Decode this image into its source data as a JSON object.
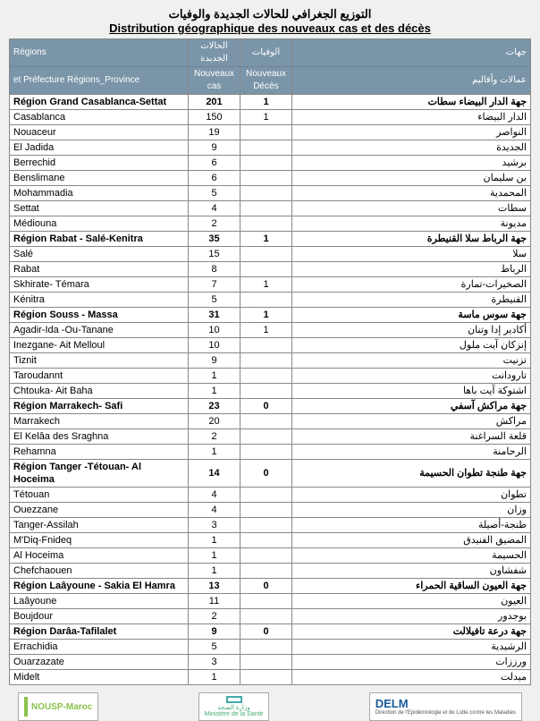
{
  "title_ar": "التوزيع الجغرافي للحالات الجديدة والوفيات",
  "title_fr": "Distribution géographique des nouveaux cas et des décès",
  "headers": {
    "fr1": "Régions",
    "fr2": "et Préfecture Régions_Province",
    "cas_ar": "الحالات الجديدة",
    "cas_fr": "Nouveaux cas",
    "dec_ar": "الوفيات",
    "dec_fr": "Nouveaux Décès",
    "ar1": "جهات",
    "ar2": "عمالات وأقاليم"
  },
  "rows": [
    {
      "region": true,
      "fr": "Région Grand Casablanca-Settat",
      "cas": "201",
      "dec": "1",
      "ar": "جهة الدار البيضاء سطات"
    },
    {
      "fr": "Casablanca",
      "cas": "150",
      "dec": "1",
      "ar": "الدار البيضاء"
    },
    {
      "fr": "Nouaceur",
      "cas": "19",
      "dec": "",
      "ar": "النواصر"
    },
    {
      "fr": "El Jadida",
      "cas": "9",
      "dec": "",
      "ar": "الجديدة"
    },
    {
      "fr": "Berrechid",
      "cas": "6",
      "dec": "",
      "ar": "برشيد"
    },
    {
      "fr": "Benslimane",
      "cas": "6",
      "dec": "",
      "ar": "بن سليمان"
    },
    {
      "fr": "Mohammadia",
      "cas": "5",
      "dec": "",
      "ar": "المحمدية"
    },
    {
      "fr": "Settat",
      "cas": "4",
      "dec": "",
      "ar": "سطات"
    },
    {
      "fr": "Médiouna",
      "cas": "2",
      "dec": "",
      "ar": "مديونة"
    },
    {
      "region": true,
      "fr": "Région Rabat - Salé-Kenitra",
      "cas": "35",
      "dec": "1",
      "ar": "جهة الرباط سلا القنيطرة"
    },
    {
      "fr": "Salé",
      "cas": "15",
      "dec": "",
      "ar": "سلا"
    },
    {
      "fr": "Rabat",
      "cas": "8",
      "dec": "",
      "ar": "الرباط"
    },
    {
      "fr": "Skhirate- Témara",
      "cas": "7",
      "dec": "1",
      "ar": "الصخيرات-تمارة"
    },
    {
      "fr": "Kénitra",
      "cas": "5",
      "dec": "",
      "ar": "القنيطرة"
    },
    {
      "region": true,
      "fr": "Région Souss - Massa",
      "cas": "31",
      "dec": "1",
      "ar": "جهة سوس ماسة"
    },
    {
      "fr": "Agadir-Ida -Ou-Tanane",
      "cas": "10",
      "dec": "1",
      "ar": "أكادير إدا وتنان"
    },
    {
      "fr": "Inezgane- Ait Melloul",
      "cas": "10",
      "dec": "",
      "ar": "إنزكان آيت ملول"
    },
    {
      "fr": "Tiznit",
      "cas": "9",
      "dec": "",
      "ar": "تزنيت"
    },
    {
      "fr": "Taroudannt",
      "cas": "1",
      "dec": "",
      "ar": "تارودانت"
    },
    {
      "fr": "Chtouka- Ait Baha",
      "cas": "1",
      "dec": "",
      "ar": "اشتوكة آيت باها"
    },
    {
      "region": true,
      "fr": "Région Marrakech- Safi",
      "cas": "23",
      "dec": "0",
      "ar": "جهة مراكش آسفي"
    },
    {
      "fr": "Marrakech",
      "cas": "20",
      "dec": "",
      "ar": "مراكش"
    },
    {
      "fr": "El Kelâa des Sraghna",
      "cas": "2",
      "dec": "",
      "ar": "قلعة السراغنة"
    },
    {
      "fr": "Rehamna",
      "cas": "1",
      "dec": "",
      "ar": "الرحامنة"
    },
    {
      "region": true,
      "fr": "Région Tanger -Tétouan- Al Hoceima",
      "cas": "14",
      "dec": "0",
      "ar": "جهة طنجة تطوان الحسيمة"
    },
    {
      "fr": "Tétouan",
      "cas": "4",
      "dec": "",
      "ar": "تطوان"
    },
    {
      "fr": "Ouezzane",
      "cas": "4",
      "dec": "",
      "ar": "وزان"
    },
    {
      "fr": "Tanger-Assilah",
      "cas": "3",
      "dec": "",
      "ar": "طنجة-أصيلة"
    },
    {
      "fr": "M'Diq-Fnideq",
      "cas": "1",
      "dec": "",
      "ar": "المضيق الفنيدق"
    },
    {
      "fr": "Al Hoceima",
      "cas": "1",
      "dec": "",
      "ar": "الحسيمة"
    },
    {
      "fr": "Chefchaouen",
      "cas": "1",
      "dec": "",
      "ar": "شفشاون"
    },
    {
      "region": true,
      "fr": "Région Laâyoune - Sakia El Hamra",
      "cas": "13",
      "dec": "0",
      "ar": "جهة العيون الساقية الحمراء"
    },
    {
      "fr": "Laâyoune",
      "cas": "11",
      "dec": "",
      "ar": "العيون"
    },
    {
      "fr": "Boujdour",
      "cas": "2",
      "dec": "",
      "ar": "بوجدور"
    },
    {
      "region": true,
      "fr": "Région Darâa-Tafilalet",
      "cas": "9",
      "dec": "0",
      "ar": "جهة درعة تافيلالت"
    },
    {
      "fr": "Errachidia",
      "cas": "5",
      "dec": "",
      "ar": "الرشيدية"
    },
    {
      "fr": "Ouarzazate",
      "cas": "3",
      "dec": "",
      "ar": "ورززات"
    },
    {
      "fr": "Midelt",
      "cas": "1",
      "dec": "",
      "ar": "ميدلت"
    }
  ],
  "footer": {
    "left": "NOUSP-Maroc",
    "mid1": "وزارة الصحة",
    "mid2": "Ministère de la Santé",
    "right": "DELM",
    "right_sub": "Direction de l'Epidémiologie et de Lutte contre les Maladies"
  },
  "colors": {
    "header_bg": "#7a95a8",
    "header_text": "#ffffff",
    "border": "#888888",
    "page_bg": "#f0f0f0"
  }
}
